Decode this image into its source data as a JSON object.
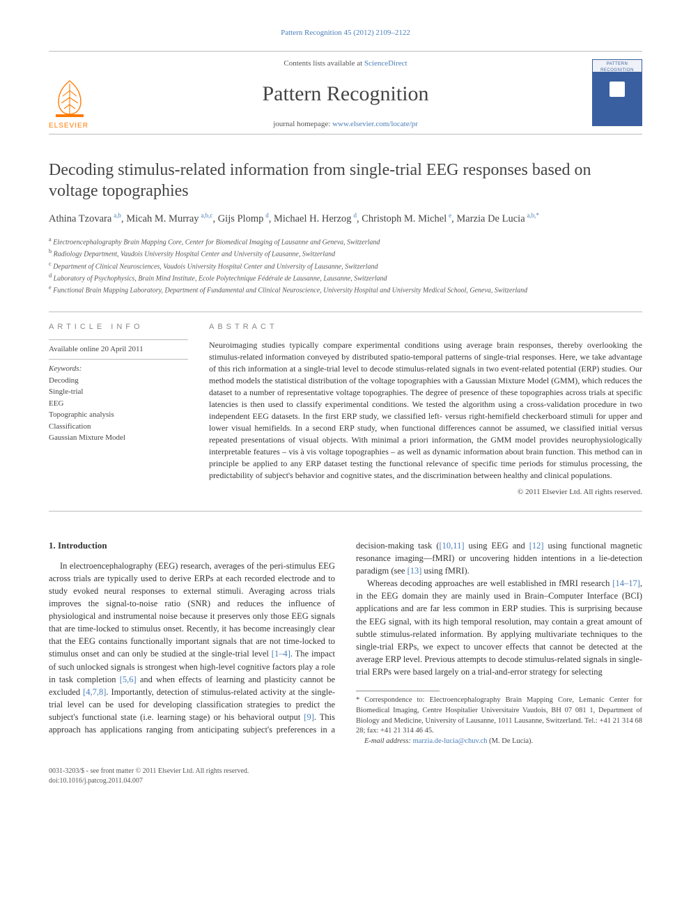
{
  "top_link": {
    "label": "Pattern Recognition 45 (2012) 2109–2122"
  },
  "masthead": {
    "contents_prefix": "Contents lists available at ",
    "contents_link": "ScienceDirect",
    "journal": "Pattern Recognition",
    "homepage_prefix": "journal homepage: ",
    "homepage_url": "www.elsevier.com/locate/pr",
    "publisher": "ELSEVIER",
    "cover_title": "PATTERN RECOGNITION"
  },
  "title": "Decoding stimulus-related information from single-trial EEG responses based on voltage topographies",
  "authors_list": [
    {
      "name": "Athina Tzovara",
      "aff": "a,b"
    },
    {
      "name": "Micah M. Murray",
      "aff": "a,b,c"
    },
    {
      "name": "Gijs Plomp",
      "aff": "d"
    },
    {
      "name": "Michael H. Herzog",
      "aff": "d"
    },
    {
      "name": "Christoph M. Michel",
      "aff": "e"
    },
    {
      "name": "Marzia De Lucia",
      "aff": "a,b,*"
    }
  ],
  "affiliations": [
    "a Electroencephalography Brain Mapping Core, Center for Biomedical Imaging of Lausanne and Geneva, Switzerland",
    "b Radiology Department, Vaudois University Hospital Center and University of Lausanne, Switzerland",
    "c Department of Clinical Neurosciences, Vaudois University Hospital Center and University of Lausanne, Switzerland",
    "d Laboratory of Psychophysics, Brain Mind Institute, Ecole Polytechnique Fédérale de Lausanne, Lausanne, Switzerland",
    "e Functional Brain Mapping Laboratory, Department of Fundamental and Clinical Neuroscience, University Hospital and University Medical School, Geneva, Switzerland"
  ],
  "article_info": {
    "heading": "ARTICLE INFO",
    "available": "Available online 20 April 2011",
    "keywords_head": "Keywords:",
    "keywords": [
      "Decoding",
      "Single-trial",
      "EEG",
      "Topographic analysis",
      "Classification",
      "Gaussian Mixture Model"
    ]
  },
  "abstract": {
    "heading": "ABSTRACT",
    "text": "Neuroimaging studies typically compare experimental conditions using average brain responses, thereby overlooking the stimulus-related information conveyed by distributed spatio-temporal patterns of single-trial responses. Here, we take advantage of this rich information at a single-trial level to decode stimulus-related signals in two event-related potential (ERP) studies. Our method models the statistical distribution of the voltage topographies with a Gaussian Mixture Model (GMM), which reduces the dataset to a number of representative voltage topographies. The degree of presence of these topographies across trials at specific latencies is then used to classify experimental conditions. We tested the algorithm using a cross-validation procedure in two independent EEG datasets. In the first ERP study, we classified left- versus right-hemifield checkerboard stimuli for upper and lower visual hemifields. In a second ERP study, when functional differences cannot be assumed, we classified initial versus repeated presentations of visual objects. With minimal a priori information, the GMM model provides neurophysiologically interpretable features – vis à vis voltage topographies – as well as dynamic information about brain function. This method can in principle be applied to any ERP dataset testing the functional relevance of specific time periods for stimulus processing, the predictability of subject's behavior and cognitive states, and the discrimination between healthy and clinical populations.",
    "copyright": "© 2011 Elsevier Ltd. All rights reserved."
  },
  "body": {
    "section_heading": "1. Introduction",
    "p1a": "In electroencephalography (EEG) research, averages of the peri-stimulus EEG across trials are typically used to derive ERPs at each recorded electrode and to study evoked neural responses to external stimuli. Averaging across trials improves the signal-to-noise ratio (SNR) and reduces the influence of physiological and instrumental noise because it preserves only those EEG signals that are time-locked to stimulus onset. Recently, it has become increasingly clear that the EEG contains functionally important signals that are not time-locked to stimulus onset and can only be studied at the single-trial level ",
    "ref1": "[1–4]",
    "p1b": ". The impact of such unlocked signals is strongest when high-level cognitive factors play a role ",
    "p2a": "in task completion ",
    "ref2": "[5,6]",
    "p2b": " and when effects of learning and plasticity cannot be excluded ",
    "ref3": "[4,7,8]",
    "p2c": ". Importantly, detection of stimulus-related activity at the single-trial level can be used for developing classification strategies to predict the subject's functional state (i.e. learning stage) or his behavioral output ",
    "ref4": "[9]",
    "p2d": ". This approach has applications ranging from anticipating subject's preferences in a decision-making task (",
    "ref5": "[10,11]",
    "p2e": " using EEG and ",
    "ref6": "[12]",
    "p2f": " using functional magnetic resonance imaging—fMRI) or uncovering hidden intentions in a lie-detection paradigm (see ",
    "ref7": "[13]",
    "p2g": " using fMRI).",
    "p3a": "Whereas decoding approaches are well established in fMRI research ",
    "ref8": "[14–17]",
    "p3b": ", in the EEG domain they are mainly used in Brain–Computer Interface (BCI) applications and are far less common in ERP studies. This is surprising because the EEG signal, with its high temporal resolution, may contain a great amount of subtle stimulus-related information. By applying multivariate techniques to the single-trial ERPs, we expect to uncover effects that cannot be detected at the average ERP level. Previous attempts to decode stimulus-related signals in single-trial ERPs were based largely on a trial-and-error strategy for selecting"
  },
  "footnote": {
    "corr": "* Correspondence to: Electroencephalography Brain Mapping Core, Lemanic Center for Biomedical Imaging, Centre Hospitalier Universitaire Vaudois, BH 07 081 1, Department of Biology and Medicine, University of Lausanne, 1011 Lausanne, Switzerland. Tel.: +41 21 314 68 28; fax: +41 21 314 46 45.",
    "email_label": "E-mail address: ",
    "email": "marzia.de-lucia@chuv.ch",
    "email_who": " (M. De Lucia)."
  },
  "page_footer": {
    "line1": "0031-3203/$ - see front matter © 2011 Elsevier Ltd. All rights reserved.",
    "line2": "doi:10.1016/j.patcog.2011.04.007"
  },
  "colors": {
    "link": "#4a7db8",
    "text": "#333333",
    "muted": "#888888",
    "orange": "#ff7a00",
    "cover_blue": "#3a5fa0"
  }
}
